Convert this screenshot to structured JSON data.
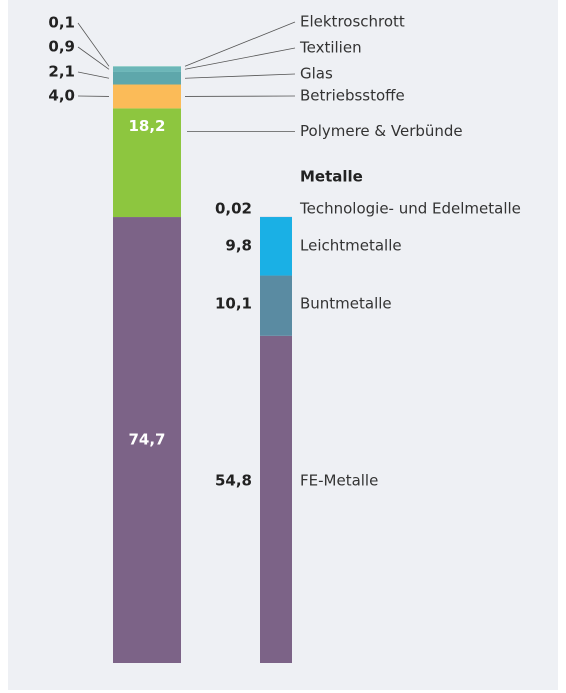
{
  "chart_data": {
    "type": "stacked_bar",
    "heading": "Metalle",
    "stacks": [
      {
        "categories": [
          null,
          "Polymere & Verbünde",
          "Betriebsstoffe",
          "Glas",
          "Textilien",
          "Elektroschrott"
        ],
        "values": [
          74.7,
          18.2,
          4.0,
          2.1,
          0.9,
          0.1
        ],
        "value_labels": [
          "74,7",
          "18,2",
          "4,0",
          "2,1",
          "0,9",
          "0,1"
        ],
        "colors": [
          "#7c6387",
          "#8dc63f",
          "#fbbb58",
          "#5ea7ab",
          "#6cb6b8",
          "#a5d9d1"
        ]
      },
      {
        "categories": [
          "FE-Metalle",
          "Buntmetalle",
          "Leichtmetalle",
          "Technologie- und Edelmetalle"
        ],
        "values": [
          54.8,
          10.1,
          9.8,
          0.02
        ],
        "value_labels": [
          "54,8",
          "10,1",
          "9,8",
          "0,02"
        ],
        "colors": [
          "#7c6387",
          "#5a8ba2",
          "#1ab0e5",
          "#3d4f9a"
        ]
      }
    ]
  }
}
